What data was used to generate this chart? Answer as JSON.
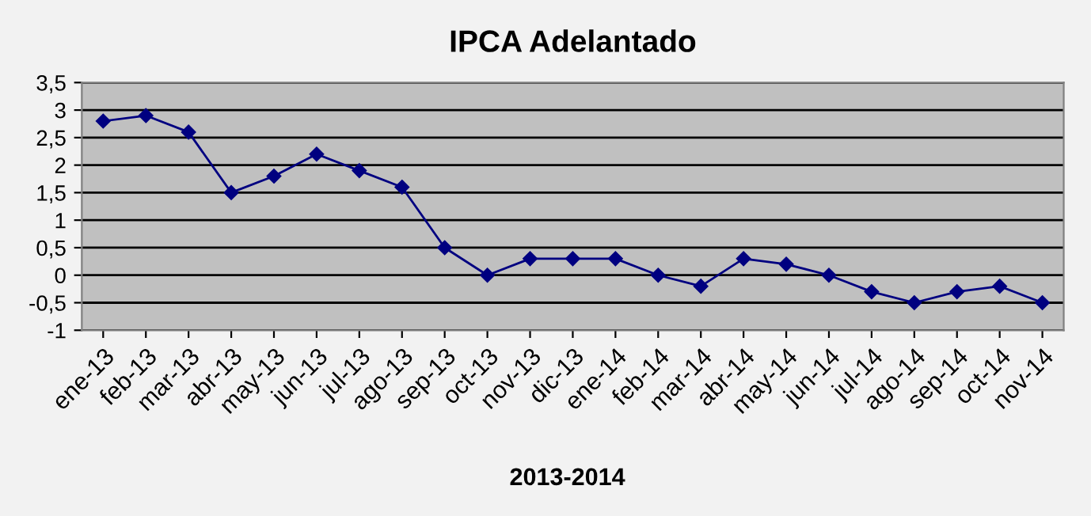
{
  "chart_data": {
    "type": "line",
    "title": "IPCA Adelantado",
    "xlabel": "2013-2014",
    "categories": [
      "ene-13",
      "feb-13",
      "mar-13",
      "abr-13",
      "may-13",
      "jun-13",
      "jul-13",
      "ago-13",
      "sep-13",
      "oct-13",
      "nov-13",
      "dic-13",
      "ene-14",
      "feb-14",
      "mar-14",
      "abr-14",
      "may-14",
      "jun-14",
      "jul-14",
      "ago-14",
      "sep-14",
      "oct-14",
      "nov-14"
    ],
    "series": [
      {
        "color": "#000080",
        "values": [
          2.8,
          2.9,
          2.6,
          1.5,
          1.8,
          2.2,
          1.9,
          1.6,
          0.5,
          0,
          0.3,
          0.3,
          0.3,
          0,
          -0.2,
          0.3,
          0.2,
          0,
          -0.3,
          -0.5,
          -0.3,
          -0.2,
          -0.5
        ]
      }
    ],
    "ylim": [
      -1,
      3.5
    ],
    "yticks": [
      {
        "value": -1,
        "label": "-1"
      },
      {
        "value": -0.5,
        "label": "-0,5"
      },
      {
        "value": 0,
        "label": "0"
      },
      {
        "value": 0.5,
        "label": "0,5"
      },
      {
        "value": 1,
        "label": "1"
      },
      {
        "value": 1.5,
        "label": "1,5"
      },
      {
        "value": 2,
        "label": "2"
      },
      {
        "value": 2.5,
        "label": "2,5"
      },
      {
        "value": 3,
        "label": "3"
      },
      {
        "value": 3.5,
        "label": "3,5"
      }
    ],
    "grid": "y",
    "marker": "diamond",
    "line_style": "solid"
  }
}
